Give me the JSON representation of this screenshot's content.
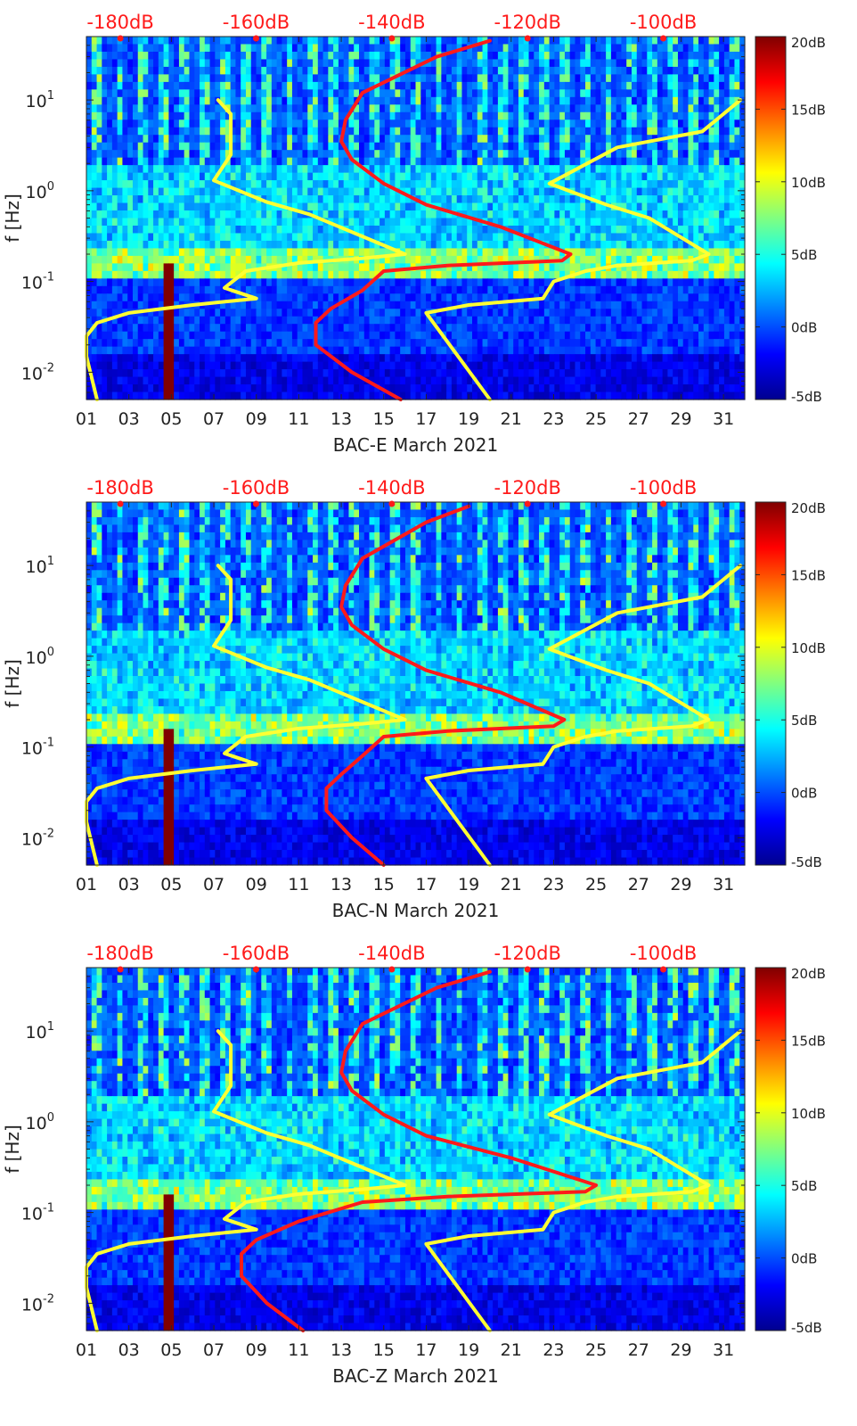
{
  "colors": {
    "model_curve": "#ffff33",
    "noise_curve": "#ff1a1a",
    "top_db_labels": "#ff1a1a",
    "colormap": [
      "#00008f",
      "#0000ff",
      "#0080ff",
      "#00ffff",
      "#80ff80",
      "#ffff00",
      "#ff8000",
      "#ff0000",
      "#800000"
    ]
  },
  "shared": {
    "xticks": [
      "01",
      "03",
      "05",
      "07",
      "09",
      "11",
      "13",
      "15",
      "17",
      "19",
      "21",
      "23",
      "25",
      "27",
      "29",
      "31"
    ],
    "ylabel": "f [Hz]",
    "ytick_labels": [
      {
        "base": "10",
        "exp": "1"
      },
      {
        "base": "10",
        "exp": "0"
      },
      {
        "base": "10",
        "exp": "-1"
      },
      {
        "base": "10",
        "exp": "-2"
      }
    ],
    "top_db_labels": [
      "-180dB",
      "-160dB",
      "-140dB",
      "-120dB",
      "-100dB"
    ],
    "colorbar_labels": [
      "20dB",
      "15dB",
      "10dB",
      "5dB",
      "0dB",
      "-5dB"
    ]
  },
  "chart_data": [
    {
      "type": "heatmap",
      "title": "",
      "xlabel": "BAC-E March 2021",
      "ylabel": "f [Hz]",
      "xlim": [
        1,
        32
      ],
      "ylim_hz": [
        0.005,
        50
      ],
      "yscale": "log",
      "color_range_db": [
        -5,
        20
      ],
      "top_axis": {
        "labels": [
          "-180dB",
          "-160dB",
          "-140dB",
          "-120dB",
          "-100dB"
        ],
        "values_db": [
          -180,
          -160,
          -140,
          -120,
          -100
        ],
        "range_db": [
          -185,
          -88
        ]
      },
      "series": [
        {
          "name": "yellow-left",
          "color": "#ffff33",
          "x": [
            7.2,
            7.8,
            7.8,
            7.0,
            9.5,
            11.5,
            16.0,
            14.0,
            11.0,
            8.5,
            7.5,
            9.0,
            6.0,
            3.0,
            1.5,
            1.0,
            1.0,
            1.5
          ],
          "f": [
            10,
            7,
            2.5,
            1.3,
            0.75,
            0.55,
            0.2,
            0.18,
            0.16,
            0.13,
            0.085,
            0.065,
            0.055,
            0.045,
            0.035,
            0.025,
            0.015,
            0.005
          ]
        },
        {
          "name": "yellow-right",
          "color": "#ffff33",
          "x": [
            31.8,
            30.0,
            26.0,
            22.8,
            25.5,
            27.5,
            30.3,
            29.5,
            26.0,
            24.5,
            23.0,
            22.5,
            19.0,
            17.0,
            20.0
          ],
          "f": [
            10,
            4.5,
            3,
            1.2,
            0.7,
            0.5,
            0.2,
            0.17,
            0.15,
            0.13,
            0.1,
            0.065,
            0.055,
            0.045,
            0.005
          ]
        },
        {
          "name": "red-noise",
          "color": "#ff1a1a",
          "x": [
            20.0,
            17.5,
            14.0,
            13.2,
            13.0,
            13.5,
            15.0,
            17.0,
            20.5,
            23.8,
            23.4,
            18.0,
            15.0,
            14.0,
            12.5,
            11.8,
            11.8,
            13.5,
            15.8
          ],
          "f": [
            45,
            30,
            12,
            6,
            3.5,
            2.2,
            1.2,
            0.7,
            0.4,
            0.2,
            0.17,
            0.15,
            0.13,
            0.08,
            0.05,
            0.035,
            0.02,
            0.01,
            0.005
          ]
        }
      ]
    },
    {
      "type": "heatmap",
      "title": "",
      "xlabel": "BAC-N March 2021",
      "ylabel": "f [Hz]",
      "xlim": [
        1,
        32
      ],
      "ylim_hz": [
        0.005,
        50
      ],
      "yscale": "log",
      "color_range_db": [
        -5,
        20
      ],
      "top_axis": {
        "labels": [
          "-180dB",
          "-160dB",
          "-140dB",
          "-120dB",
          "-100dB"
        ],
        "values_db": [
          -180,
          -160,
          -140,
          -120,
          -100
        ],
        "range_db": [
          -185,
          -88
        ]
      },
      "series": [
        {
          "name": "yellow-left",
          "color": "#ffff33",
          "x": [
            7.2,
            7.8,
            7.8,
            7.0,
            9.5,
            11.5,
            16.0,
            14.0,
            11.0,
            8.5,
            7.5,
            9.0,
            6.0,
            3.0,
            1.5,
            1.0,
            1.0,
            1.5
          ],
          "f": [
            10,
            7,
            2.5,
            1.3,
            0.75,
            0.55,
            0.2,
            0.18,
            0.16,
            0.13,
            0.085,
            0.065,
            0.055,
            0.045,
            0.035,
            0.025,
            0.015,
            0.005
          ]
        },
        {
          "name": "yellow-right",
          "color": "#ffff33",
          "x": [
            31.8,
            30.0,
            26.0,
            22.8,
            25.5,
            27.5,
            30.3,
            29.5,
            26.0,
            24.5,
            23.0,
            22.5,
            19.0,
            17.0,
            20.0
          ],
          "f": [
            10,
            4.5,
            3,
            1.2,
            0.7,
            0.5,
            0.2,
            0.17,
            0.15,
            0.13,
            0.1,
            0.065,
            0.055,
            0.045,
            0.005
          ]
        },
        {
          "name": "red-noise",
          "color": "#ff1a1a",
          "x": [
            19.0,
            17.0,
            14.0,
            13.2,
            13.0,
            13.5,
            15.0,
            17.0,
            20.5,
            23.5,
            23.0,
            18.0,
            15.0,
            14.0,
            13.0,
            12.3,
            12.3,
            13.5,
            15.0
          ],
          "f": [
            45,
            30,
            12,
            6,
            3.5,
            2.2,
            1.2,
            0.7,
            0.4,
            0.2,
            0.17,
            0.15,
            0.13,
            0.08,
            0.05,
            0.035,
            0.02,
            0.01,
            0.005
          ]
        }
      ]
    },
    {
      "type": "heatmap",
      "title": "",
      "xlabel": "BAC-Z March 2021",
      "ylabel": "f [Hz]",
      "xlim": [
        1,
        32
      ],
      "ylim_hz": [
        0.005,
        50
      ],
      "yscale": "log",
      "color_range_db": [
        -5,
        20
      ],
      "top_axis": {
        "labels": [
          "-180dB",
          "-160dB",
          "-140dB",
          "-120dB",
          "-100dB"
        ],
        "values_db": [
          -180,
          -160,
          -140,
          -120,
          -100
        ],
        "range_db": [
          -185,
          -88
        ]
      },
      "series": [
        {
          "name": "yellow-left",
          "color": "#ffff33",
          "x": [
            7.2,
            7.8,
            7.8,
            7.0,
            9.5,
            11.5,
            16.0,
            14.0,
            11.0,
            8.5,
            7.5,
            9.0,
            6.0,
            3.0,
            1.5,
            1.0,
            1.0,
            1.5
          ],
          "f": [
            10,
            7,
            2.5,
            1.3,
            0.75,
            0.55,
            0.2,
            0.18,
            0.16,
            0.13,
            0.085,
            0.065,
            0.055,
            0.045,
            0.035,
            0.025,
            0.015,
            0.005
          ]
        },
        {
          "name": "yellow-right",
          "color": "#ffff33",
          "x": [
            31.8,
            30.0,
            26.0,
            22.8,
            25.5,
            27.5,
            30.3,
            29.5,
            26.0,
            24.5,
            23.0,
            22.5,
            19.0,
            17.0,
            20.0
          ],
          "f": [
            10,
            4.5,
            3,
            1.2,
            0.7,
            0.5,
            0.2,
            0.17,
            0.15,
            0.13,
            0.1,
            0.065,
            0.055,
            0.045,
            0.005
          ]
        },
        {
          "name": "red-noise",
          "color": "#ff1a1a",
          "x": [
            20.0,
            17.5,
            14.0,
            13.2,
            13.0,
            13.5,
            15.0,
            17.0,
            21.0,
            25.0,
            24.5,
            18.0,
            14.0,
            11.0,
            9.0,
            8.3,
            8.3,
            9.5,
            11.2
          ],
          "f": [
            45,
            30,
            12,
            6,
            3.5,
            2.2,
            1.2,
            0.7,
            0.4,
            0.2,
            0.17,
            0.15,
            0.13,
            0.08,
            0.05,
            0.035,
            0.02,
            0.01,
            0.005
          ]
        }
      ]
    }
  ]
}
